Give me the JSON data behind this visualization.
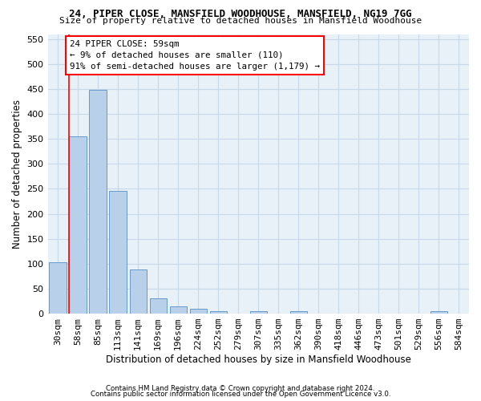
{
  "title": "24, PIPER CLOSE, MANSFIELD WOODHOUSE, MANSFIELD, NG19 7GG",
  "subtitle": "Size of property relative to detached houses in Mansfield Woodhouse",
  "xlabel": "Distribution of detached houses by size in Mansfield Woodhouse",
  "ylabel": "Number of detached properties",
  "footnote1": "Contains HM Land Registry data © Crown copyright and database right 2024.",
  "footnote2": "Contains public sector information licensed under the Open Government Licence v3.0.",
  "annotation_title": "24 PIPER CLOSE: 59sqm",
  "annotation_line1": "← 9% of detached houses are smaller (110)",
  "annotation_line2": "91% of semi-detached houses are larger (1,179) →",
  "bar_labels": [
    "30sqm",
    "58sqm",
    "85sqm",
    "113sqm",
    "141sqm",
    "169sqm",
    "196sqm",
    "224sqm",
    "252sqm",
    "279sqm",
    "307sqm",
    "335sqm",
    "362sqm",
    "390sqm",
    "418sqm",
    "446sqm",
    "473sqm",
    "501sqm",
    "529sqm",
    "556sqm",
    "584sqm"
  ],
  "bar_values": [
    103,
    355,
    448,
    246,
    88,
    30,
    14,
    9,
    5,
    0,
    5,
    0,
    5,
    0,
    0,
    0,
    0,
    0,
    0,
    5,
    0
  ],
  "bar_color": "#b8d0ea",
  "bar_edge_color": "#6699cc",
  "grid_color": "#c8d8e8",
  "background_color": "#e8f0f8",
  "ylim": [
    0,
    560
  ],
  "yticks": [
    0,
    50,
    100,
    150,
    200,
    250,
    300,
    350,
    400,
    450,
    500,
    550
  ]
}
